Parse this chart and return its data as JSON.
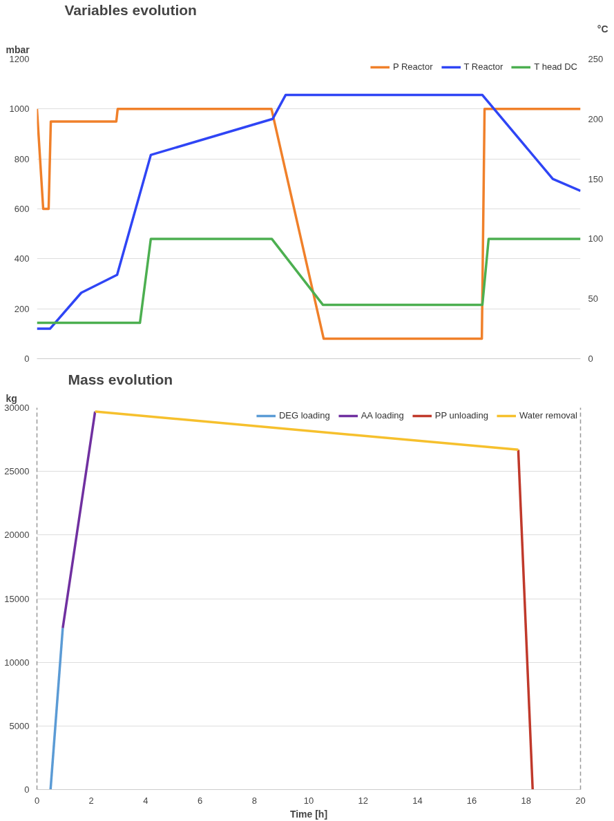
{
  "chart_data": [
    {
      "type": "line",
      "title": "Variables evolution",
      "ylabel": "mbar",
      "y2label": "°C",
      "xlim": [
        0,
        20
      ],
      "ylim": [
        0,
        1200
      ],
      "yticks": [
        0,
        200,
        400,
        600,
        800,
        1000,
        1200
      ],
      "y2lim": [
        0,
        250
      ],
      "y2ticks": [
        0,
        50,
        100,
        150,
        200,
        250
      ],
      "tick_labels": "y",
      "grid": "y",
      "legend": "top",
      "series": [
        {
          "name": "P Reactor",
          "color": "#f0802a",
          "x": [
            0,
            0.23,
            0.43,
            0.51,
            2.92,
            2.97,
            8.63,
            10.55,
            16.37,
            16.47,
            20
          ],
          "values": [
            1000,
            600,
            600,
            950,
            950,
            1000,
            1000,
            80,
            80,
            1000,
            1000
          ]
        },
        {
          "name": "T Reactor",
          "color": "#2f45f5",
          "axis": "y2",
          "x": [
            0,
            0.48,
            1.63,
            2.95,
            4.19,
            8.67,
            9.15,
            16.39,
            18.98,
            20
          ],
          "values": [
            25,
            25,
            55,
            70,
            170,
            200,
            220,
            220,
            150,
            140
          ]
        },
        {
          "name": "T head DC",
          "color": "#4caf50",
          "axis": "y2",
          "x": [
            0,
            3.79,
            4.19,
            8.64,
            10.52,
            16.39,
            16.62,
            20
          ],
          "values": [
            30,
            30,
            100,
            100,
            45,
            45,
            100,
            100
          ]
        }
      ]
    },
    {
      "type": "line",
      "title": "Mass evolution",
      "ylabel": "kg",
      "xlabel": "Time [h]",
      "xlim": [
        0,
        20
      ],
      "xticks": [
        0,
        2,
        4,
        6,
        8,
        10,
        12,
        14,
        16,
        18,
        20
      ],
      "ylim": [
        0,
        30000
      ],
      "yticks": [
        0,
        5000,
        10000,
        15000,
        20000,
        25000,
        30000
      ],
      "grid": "y",
      "legend": "top right",
      "series": [
        {
          "name": "DEG loading",
          "color": "#5b9bd5",
          "x": [
            0.5,
            0.95
          ],
          "values": [
            0,
            12700
          ]
        },
        {
          "name": "AA loading",
          "color": "#7030a0",
          "x": [
            0.95,
            2.14
          ],
          "values": [
            12700,
            29700
          ]
        },
        {
          "name": "PP unloading",
          "color": "#c0392b",
          "x": [
            17.71,
            18.24
          ],
          "values": [
            26700,
            0
          ]
        },
        {
          "name": "Water removal",
          "color": "#f6c02d",
          "x": [
            2.14,
            17.71
          ],
          "values": [
            29700,
            26700
          ]
        }
      ]
    }
  ]
}
